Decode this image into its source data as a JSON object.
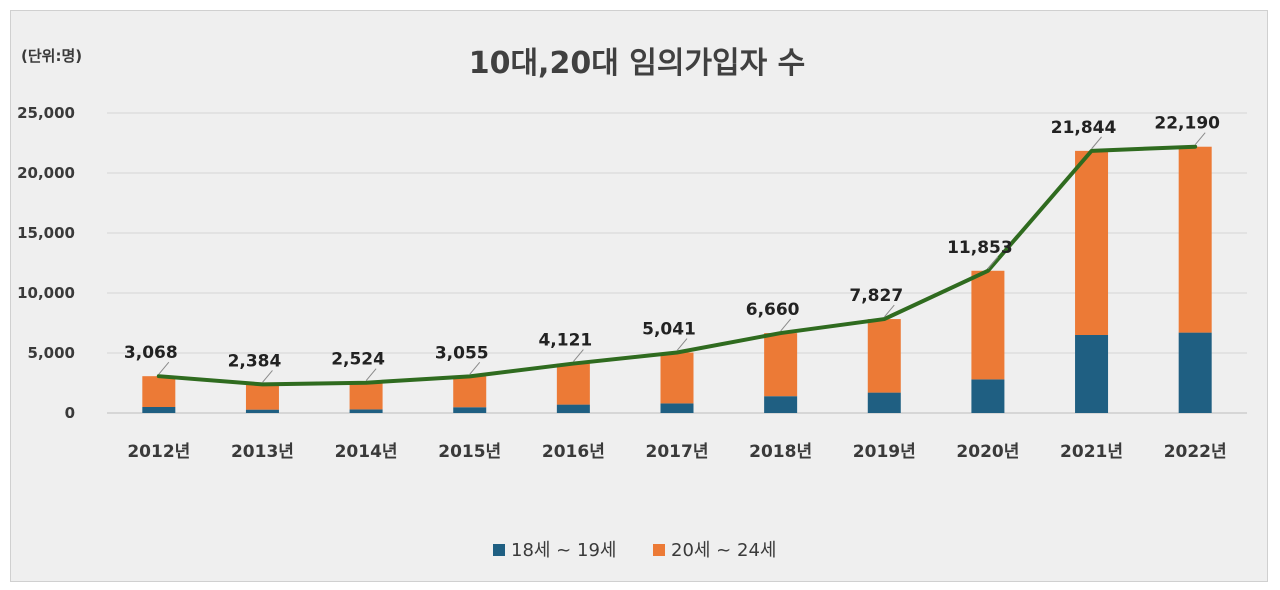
{
  "chart_data": {
    "type": "bar",
    "title": "10대,20대 임의가입자 수",
    "unit_label": "(단위:명)",
    "categories": [
      "2012년",
      "2013년",
      "2014년",
      "2015년",
      "2016년",
      "2017년",
      "2018년",
      "2019년",
      "2020년",
      "2021년",
      "2022년"
    ],
    "series": [
      {
        "name": "18세 ~ 19세",
        "values": [
          500,
          280,
          300,
          480,
          700,
          800,
          1400,
          1700,
          2800,
          6500,
          6700
        ],
        "color": "#1f5f82"
      },
      {
        "name": "20세 ~ 24세",
        "values": [
          2568,
          2104,
          2224,
          2575,
          3421,
          4241,
          5260,
          6127,
          9053,
          15344,
          15490
        ],
        "color": "#ec7a36"
      }
    ],
    "total_line": {
      "values": [
        3068,
        2384,
        2524,
        3055,
        4121,
        5041,
        6660,
        7827,
        11853,
        21844,
        22190
      ],
      "labels": [
        "3,068",
        "2,384",
        "2,524",
        "3,055",
        "4,121",
        "5,041",
        "6,660",
        "7,827",
        "11,853",
        "21,844",
        "22,190"
      ],
      "color": "#2f6b1f"
    },
    "y_ticks": [
      "0",
      "5,000",
      "10,000",
      "15,000",
      "20,000",
      "25,000"
    ],
    "ylim": [
      0,
      25000
    ],
    "stacked": true,
    "grid": true,
    "legend_position": "bottom"
  }
}
